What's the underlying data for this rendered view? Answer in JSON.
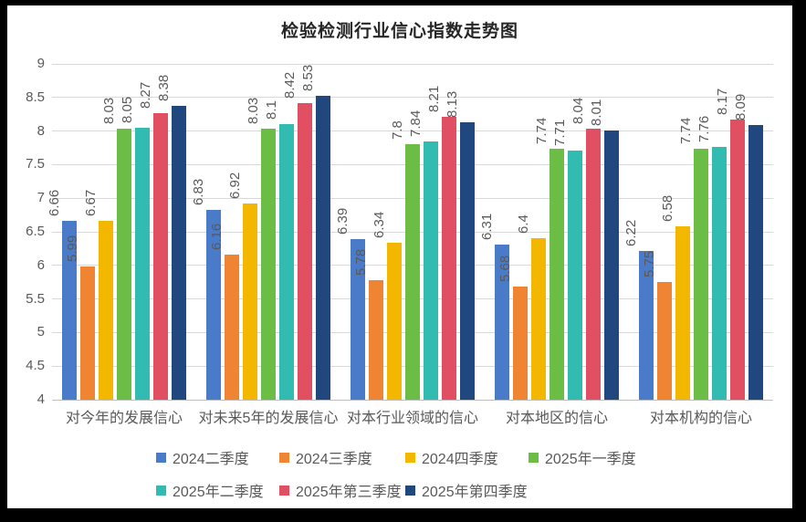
{
  "chart_data": {
    "type": "bar",
    "title": "检验检测行业信心指数走势图",
    "categories": [
      "对今年的发展信心",
      "对未来5年的发展信心",
      "对本行业领域的信心",
      "对本地区的信心",
      "对本机构的信心"
    ],
    "series": [
      {
        "name": "2024二季度",
        "color": "#4a7bc9",
        "values": [
          6.66,
          6.83,
          6.39,
          6.31,
          6.22
        ]
      },
      {
        "name": "2024三季度",
        "color": "#ef8532",
        "values": [
          5.99,
          6.16,
          5.78,
          5.68,
          5.75
        ]
      },
      {
        "name": "2024四季度",
        "color": "#f3b700",
        "values": [
          6.67,
          6.92,
          6.34,
          6.4,
          6.58
        ]
      },
      {
        "name": "2025年一季度",
        "color": "#6cbd45",
        "values": [
          8.03,
          8.03,
          7.8,
          7.74,
          7.74
        ]
      },
      {
        "name": "2025年二季度",
        "color": "#32bbb0",
        "values": [
          8.05,
          8.1,
          7.84,
          7.71,
          7.76
        ]
      },
      {
        "name": "2025年第三季度",
        "color": "#e14f63",
        "values": [
          8.27,
          8.42,
          8.21,
          8.04,
          8.17
        ]
      },
      {
        "name": "2025年第四季度",
        "color": "#21487e",
        "values": [
          8.38,
          8.53,
          8.13,
          8.01,
          8.09
        ]
      }
    ],
    "ylim": [
      4,
      9
    ],
    "ytick_step": 0.5,
    "yticks": [
      "4",
      "4.5",
      "5",
      "5.5",
      "6",
      "6.5",
      "7",
      "7.5",
      "8",
      "8.5",
      "9"
    ],
    "grid": true,
    "legend_position": "bottom",
    "data_labels": "shown, rotated 90° vertical, above each bar",
    "text_color": "#595959",
    "gridline_color": "#d9d9d9"
  }
}
